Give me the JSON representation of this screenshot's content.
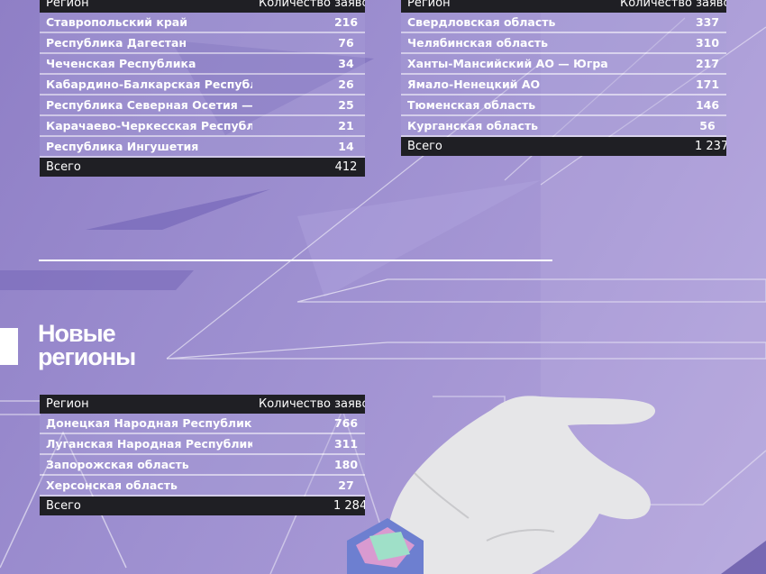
{
  "colors": {
    "background": "#9d8fd0",
    "header_bg": "#1f1f24",
    "text": "#ffffff"
  },
  "table_north_caucasus": {
    "header": {
      "region": "Регион",
      "count": "Количество заявок"
    },
    "rows": [
      {
        "region": "Ставропольский край",
        "count": "216"
      },
      {
        "region": "Республика Дагестан",
        "count": "76"
      },
      {
        "region": "Чеченская Республика",
        "count": "34"
      },
      {
        "region": "Кабардино-Балкарская Республика",
        "count": "26"
      },
      {
        "region": "Республика Северная Осетия — Алания",
        "count": "25"
      },
      {
        "region": "Карачаево-Черкесская Республика",
        "count": "21"
      },
      {
        "region": "Республика Ингушетия",
        "count": "14"
      }
    ],
    "total": {
      "label": "Всего",
      "count": "412"
    }
  },
  "table_ural": {
    "header": {
      "region": "Регион",
      "count": "Количество заявок"
    },
    "rows": [
      {
        "region": "Свердловская область",
        "count": "337"
      },
      {
        "region": "Челябинская область",
        "count": "310"
      },
      {
        "region": "Ханты-Мансийский АО — Югра",
        "count": "217"
      },
      {
        "region": "Ямало-Ненецкий АО",
        "count": "171"
      },
      {
        "region": "Тюменская область",
        "count": "146"
      },
      {
        "region": "Курганская область",
        "count": "56"
      }
    ],
    "total": {
      "label": "Всего",
      "count": "1 237"
    }
  },
  "new_regions": {
    "title_line1": "Новые",
    "title_line2": "регионы",
    "header": {
      "region": "Регион",
      "count": "Количество заявок"
    },
    "rows": [
      {
        "region": "Донецкая Народная Республика",
        "count": "766"
      },
      {
        "region": "Луганская Народная Республика",
        "count": "311"
      },
      {
        "region": "Запорожская область",
        "count": "180"
      },
      {
        "region": "Херсонская область",
        "count": "27"
      }
    ],
    "total": {
      "label": "Всего",
      "count": "1 284"
    }
  }
}
